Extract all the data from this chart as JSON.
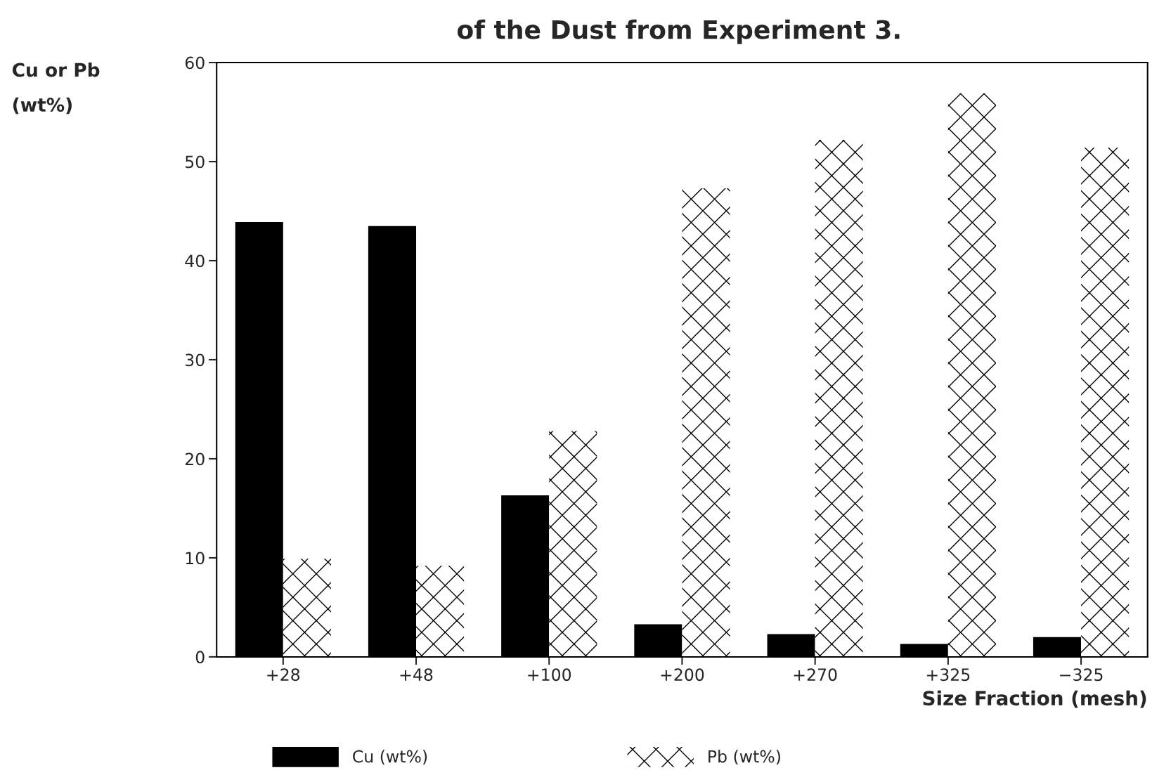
{
  "chart_data": {
    "type": "bar",
    "title": "of the Dust from Experiment 3.",
    "xlabel": "Size Fraction (mesh)",
    "ylabel": "Cu or Pb\n(wt%)",
    "categories": [
      "+28",
      "+48",
      "+100",
      "+200",
      "+270",
      "+325",
      "−325"
    ],
    "series": [
      {
        "name": "Cu (wt%)",
        "color": "#000000",
        "values": [
          43.9,
          43.5,
          16.3,
          3.3,
          2.3,
          1.3,
          2.0
        ]
      },
      {
        "name": "Pb (wt%)",
        "color": "#ffffff",
        "values": [
          9.9,
          9.2,
          22.8,
          47.3,
          52.2,
          56.9,
          51.4
        ]
      }
    ],
    "ylim": [
      0,
      60
    ],
    "yticks": [
      0,
      10,
      20,
      30,
      40,
      50,
      60
    ],
    "grid": false,
    "legend": "bottom"
  }
}
